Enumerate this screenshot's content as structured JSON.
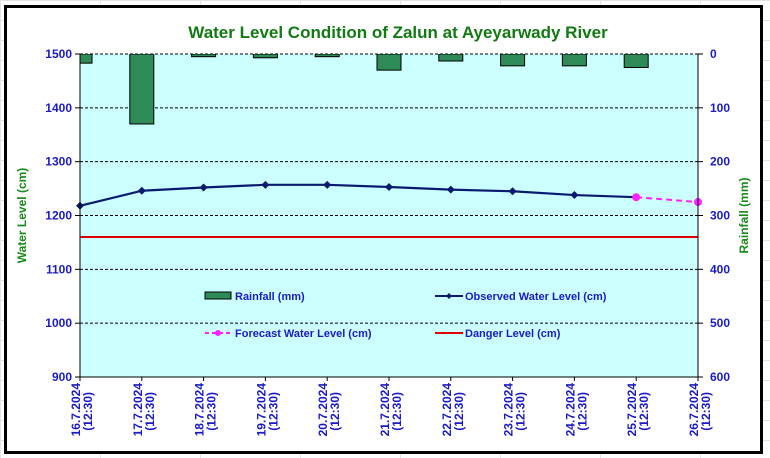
{
  "chart_data": {
    "type": "bar+line",
    "title": "Water Level Condition of Zalun at Ayeyarwady River",
    "categories": [
      "16.7.2024\n(12:30)",
      "17.7.2024\n(12:30)",
      "18.7.2024\n(12:30)",
      "19.7.2024\n(12:30)",
      "20.7.2024\n(12:30)",
      "21.7.2024\n(12:30)",
      "22.7.2024\n(12:30)",
      "23.7.2024\n(12:30)",
      "24.7.2024\n(12:30)",
      "25.7.2024\n(12:30)",
      "26.7.2024\n(12:30)"
    ],
    "ylabel_left": "Water Level (cm)",
    "ylabel_right": "Rainfall (mm)",
    "ylim_left": [
      900,
      1500
    ],
    "yticks_left": [
      900,
      1000,
      1100,
      1200,
      1300,
      1400,
      1500
    ],
    "ylim_right": [
      0,
      600
    ],
    "yticks_right": [
      0,
      100,
      200,
      300,
      400,
      500,
      600
    ],
    "right_axis_inverted": true,
    "grid": true,
    "legend_placement": "inside-center",
    "series": [
      {
        "name": "Rainfall (mm)",
        "type": "bar",
        "axis": "right",
        "color": "#2e8b57",
        "values": [
          17,
          130,
          5,
          7,
          5,
          30,
          13,
          22,
          22,
          25,
          null
        ]
      },
      {
        "name": "Observed Water Level (cm)",
        "type": "line",
        "axis": "left",
        "color": "#0a1a6e",
        "marker": "diamond",
        "values": [
          1218,
          1246,
          1252,
          1257,
          1257,
          1253,
          1248,
          1245,
          1238,
          1234,
          null
        ]
      },
      {
        "name": "Forecast Water Level (cm)",
        "type": "line",
        "axis": "left",
        "color": "#ff22ff",
        "dashed": true,
        "marker": "circle",
        "values": [
          null,
          null,
          null,
          null,
          null,
          null,
          null,
          null,
          null,
          1234,
          1225
        ]
      },
      {
        "name": "Danger Level (cm)",
        "type": "line",
        "axis": "left",
        "color": "#e00000",
        "values": [
          1160,
          1160,
          1160,
          1160,
          1160,
          1160,
          1160,
          1160,
          1160,
          1160,
          1160
        ]
      }
    ],
    "legend": [
      {
        "label": "Rainfall (mm)",
        "series": 0
      },
      {
        "label": "Observed Water Level (cm)",
        "series": 1
      },
      {
        "label": "Forecast Water Level (cm)",
        "series": 2
      },
      {
        "label": "Danger Level (cm)",
        "series": 3
      }
    ],
    "plot_background": "#ccffff"
  }
}
